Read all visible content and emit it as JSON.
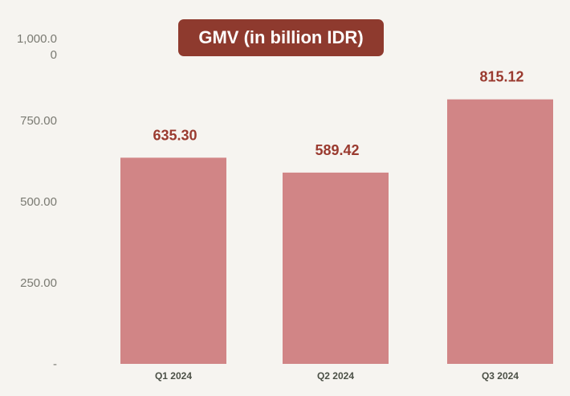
{
  "chart_data": {
    "type": "bar",
    "title": "GMV (in billion IDR)",
    "categories": [
      "Q1 2024",
      "Q2 2024",
      "Q3 2024"
    ],
    "values": [
      635.3,
      589.42,
      815.12
    ],
    "value_labels": [
      "635.30",
      "589.42",
      "815.12"
    ],
    "xlabel": "",
    "ylabel": "",
    "ylim": [
      0,
      1000
    ],
    "yticks": [
      0,
      250,
      500,
      750,
      1000
    ],
    "ytick_labels": [
      "-",
      "250.00",
      "500.00",
      "750.00",
      "1,000.00"
    ],
    "grid": false,
    "legend": "none",
    "colors": {
      "bar": "#d18586",
      "title_bg": "#8e3a2e",
      "value_label": "#9a3a2f",
      "background": "#f6f4f0"
    }
  }
}
